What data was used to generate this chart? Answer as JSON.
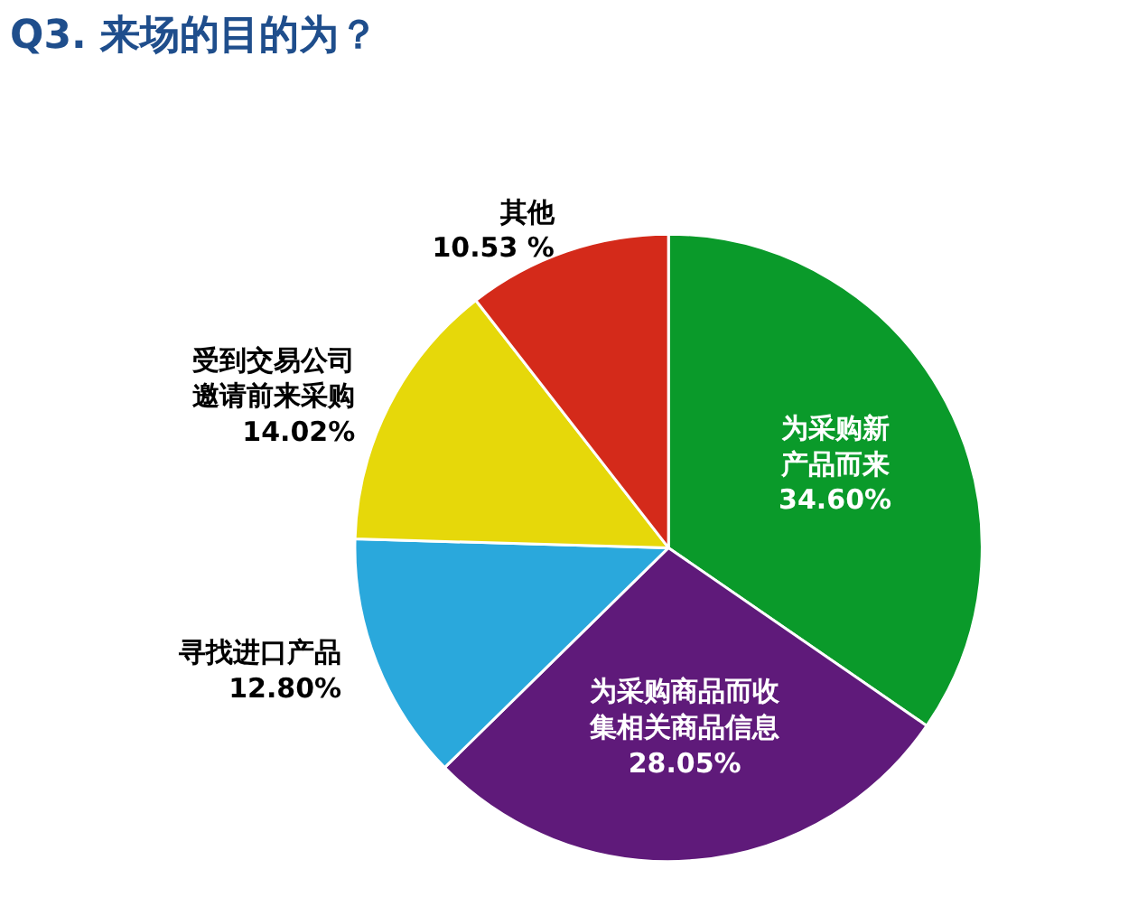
{
  "chart_data": {
    "type": "pie",
    "title": "Q3. 来场的目的为？",
    "categories": [
      "为采购新产品而来",
      "为采购商品而收集相关商品信息",
      "寻找进口产品",
      "受到交易公司邀请前来采购",
      "其他"
    ],
    "values": [
      34.6,
      28.05,
      12.8,
      14.02,
      10.53
    ],
    "value_labels": [
      "34.60%",
      "28.05%",
      "12.80%",
      "14.02%",
      "10.53 %"
    ],
    "colors": [
      "#0a9a2a",
      "#5f1a7a",
      "#2aa8dc",
      "#e6d80a",
      "#d42a1a"
    ]
  }
}
